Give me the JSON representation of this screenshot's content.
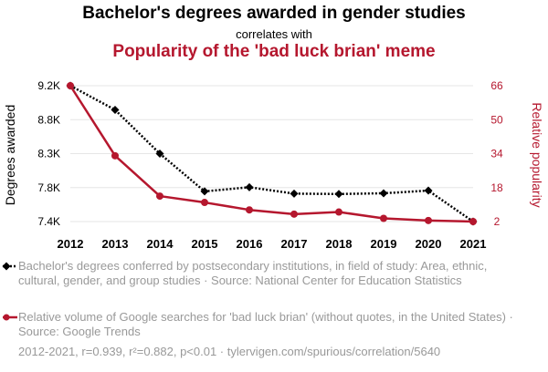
{
  "title": "Bachelor's degrees awarded in gender studies",
  "subtitle": "correlates with",
  "title2": "Popularity of the 'bad luck brian' meme",
  "colors": {
    "series1": "#000000",
    "series2": "#b5172e",
    "grid": "#e6e6e6",
    "legend_text": "#999999"
  },
  "chart_data": {
    "type": "line",
    "x": [
      2012,
      2013,
      2014,
      2015,
      2016,
      2017,
      2018,
      2019,
      2020,
      2021
    ],
    "ylabel_left": "Degrees awarded",
    "ylabel_right": "Relative popularity",
    "yticks_left": [
      "9.2K",
      "8.8K",
      "8.3K",
      "7.8K",
      "7.4K"
    ],
    "yticks_left_values": [
      9200,
      8750,
      8300,
      7850,
      7400
    ],
    "yticks_right": [
      "66",
      "50",
      "34",
      "18",
      "2"
    ],
    "yticks_right_values": [
      66,
      50,
      34,
      18,
      2
    ],
    "ylim_left": [
      7400,
      9200
    ],
    "ylim_right": [
      2,
      66
    ],
    "series": [
      {
        "name": "Bachelor's degrees conferred by postsecondary institutions, in field of study: Area, ethnic, cultural, gender, and group studies · Source: National Center for Education Statistics",
        "axis": "left",
        "style": "dotted",
        "marker": "diamond",
        "values": [
          9200,
          8880,
          8300,
          7800,
          7855,
          7770,
          7765,
          7775,
          7810,
          7400
        ]
      },
      {
        "name": "Relative volume of Google searches for 'bad luck brian' (without quotes, in the United States) · Source: Google Trends",
        "axis": "right",
        "style": "solid",
        "marker": "circle",
        "values": [
          66,
          33,
          14,
          11,
          7.5,
          5.5,
          6.5,
          3.5,
          2.5,
          2
        ]
      }
    ],
    "grid": true
  },
  "legend": {
    "item1": "Bachelor's degrees conferred by postsecondary institutions, in field of study: Area, ethnic, cultural, gender, and group studies · Source: National Center for Education Statistics",
    "item2": "Relative volume of Google searches for 'bad luck brian' (without quotes, in the United States) · Source: Google Trends"
  },
  "footer": "2012-2021, r=0.939, r²=0.882, p<0.01 · tylervigen.com/spurious/correlation/5640"
}
